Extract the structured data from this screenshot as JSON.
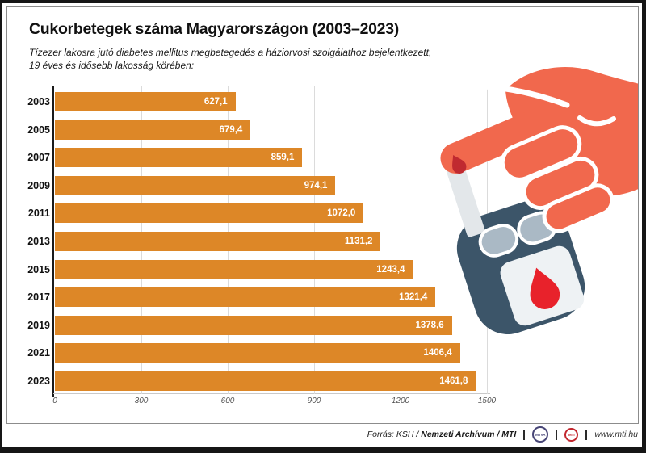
{
  "header": {
    "title": "Cukorbetegek száma Magyarországon (2003–2023)",
    "subtitle_line1": "Tízezer lakosra jutó diabetes mellitus megbetegedés a háziorvosi szolgálathoz bejelentkezett,",
    "subtitle_line2": "19 éves és idősebb lakosság körében:"
  },
  "chart_data": {
    "type": "bar",
    "orientation": "horizontal",
    "title": "Cukorbetegek száma Magyarországon (2003–2023)",
    "categories": [
      "2003",
      "2005",
      "2007",
      "2009",
      "2011",
      "2013",
      "2015",
      "2017",
      "2019",
      "2021",
      "2023"
    ],
    "values": [
      627.1,
      679.4,
      859.1,
      974.1,
      1072.0,
      1131.2,
      1243.4,
      1321.4,
      1378.6,
      1406.4,
      1461.8
    ],
    "value_labels": [
      "627,1",
      "679,4",
      "859,1",
      "974,1",
      "1072,0",
      "1131,2",
      "1243,4",
      "1321,4",
      "1378,6",
      "1406,4",
      "1461,8"
    ],
    "x_ticks": [
      "0",
      "300",
      "600",
      "900",
      "1200",
      "1500"
    ],
    "xlim": [
      0,
      1500
    ],
    "grid": true,
    "legend": "none",
    "bar_color": "#DD8727",
    "value_label_color": "#FFFFFF",
    "axis_color": "#1B1B1B",
    "gridline_color": "#DBDBDB",
    "tick_color": "#555555"
  },
  "footer": {
    "source_normal": "Forrás: KSH /",
    "source_bold_1": "Nemzeti Archívum",
    "source_slash": "/",
    "source_bold_2": "MTI",
    "mtva_logo_text": "MTVA",
    "mti_logo_text": "MTI",
    "website": "www.mti.hu"
  },
  "illustration": {
    "hand_color": "#F1684D",
    "fingertip_drop_color": "#C02A30",
    "meter_body_color": "#3C5569",
    "meter_button_color": "#AAB9C5",
    "meter_screen_color": "#EEF2F4",
    "screen_drop_color": "#E8222B",
    "test_strip_color": "#E3E7EA"
  }
}
